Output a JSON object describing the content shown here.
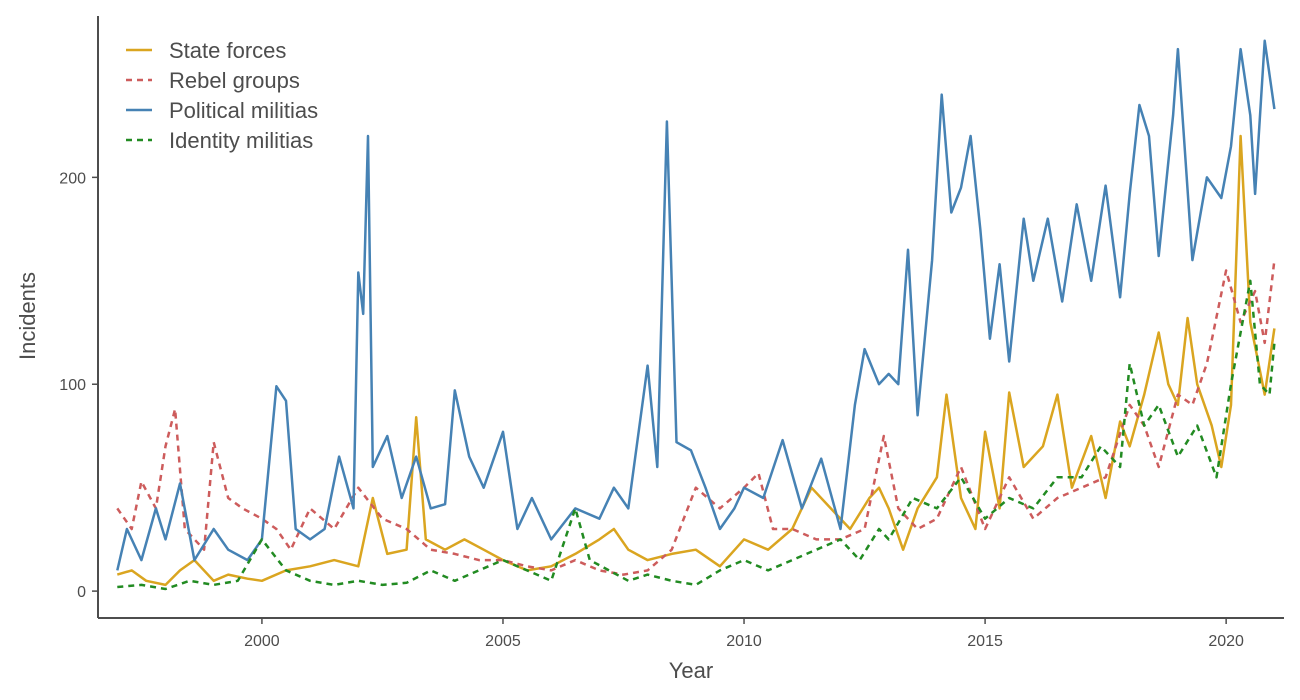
{
  "chart_data": {
    "type": "line",
    "title": "",
    "xlabel": "Year",
    "ylabel": "Incidents",
    "xlim": [
      1996.6,
      2021.2
    ],
    "ylim": [
      -13,
      278
    ],
    "x_ticks": [
      2000,
      2005,
      2010,
      2015,
      2020
    ],
    "y_ticks": [
      0,
      100,
      200
    ],
    "grid": false,
    "legend_position": "top-left",
    "series": [
      {
        "name": "State forces",
        "color": "#DAA520",
        "dash": "solid",
        "points": [
          [
            1997.0,
            8
          ],
          [
            1997.3,
            10
          ],
          [
            1997.6,
            5
          ],
          [
            1998.0,
            3
          ],
          [
            1998.3,
            10
          ],
          [
            1998.6,
            15
          ],
          [
            1999.0,
            5
          ],
          [
            1999.3,
            8
          ],
          [
            1999.7,
            6
          ],
          [
            2000.0,
            5
          ],
          [
            2000.5,
            10
          ],
          [
            2001.0,
            12
          ],
          [
            2001.5,
            15
          ],
          [
            2002.0,
            12
          ],
          [
            2002.3,
            45
          ],
          [
            2002.6,
            18
          ],
          [
            2003.0,
            20
          ],
          [
            2003.2,
            84
          ],
          [
            2003.4,
            25
          ],
          [
            2003.8,
            20
          ],
          [
            2004.2,
            25
          ],
          [
            2004.6,
            20
          ],
          [
            2005.0,
            15
          ],
          [
            2005.5,
            10
          ],
          [
            2006.0,
            12
          ],
          [
            2006.5,
            18
          ],
          [
            2007.0,
            25
          ],
          [
            2007.3,
            30
          ],
          [
            2007.6,
            20
          ],
          [
            2008.0,
            15
          ],
          [
            2008.5,
            18
          ],
          [
            2009.0,
            20
          ],
          [
            2009.5,
            12
          ],
          [
            2010.0,
            25
          ],
          [
            2010.5,
            20
          ],
          [
            2011.0,
            30
          ],
          [
            2011.4,
            50
          ],
          [
            2011.8,
            40
          ],
          [
            2012.2,
            30
          ],
          [
            2012.6,
            45
          ],
          [
            2012.8,
            50
          ],
          [
            2013.0,
            40
          ],
          [
            2013.3,
            20
          ],
          [
            2013.6,
            40
          ],
          [
            2014.0,
            55
          ],
          [
            2014.2,
            95
          ],
          [
            2014.5,
            45
          ],
          [
            2014.8,
            30
          ],
          [
            2015.0,
            77
          ],
          [
            2015.3,
            40
          ],
          [
            2015.5,
            96
          ],
          [
            2015.8,
            60
          ],
          [
            2016.2,
            70
          ],
          [
            2016.5,
            95
          ],
          [
            2016.8,
            50
          ],
          [
            2017.2,
            75
          ],
          [
            2017.5,
            45
          ],
          [
            2017.8,
            82
          ],
          [
            2018.0,
            70
          ],
          [
            2018.3,
            95
          ],
          [
            2018.6,
            125
          ],
          [
            2018.8,
            100
          ],
          [
            2019.0,
            90
          ],
          [
            2019.2,
            132
          ],
          [
            2019.4,
            100
          ],
          [
            2019.7,
            80
          ],
          [
            2019.9,
            60
          ],
          [
            2020.1,
            90
          ],
          [
            2020.3,
            220
          ],
          [
            2020.5,
            130
          ],
          [
            2020.8,
            95
          ],
          [
            2021.0,
            127
          ]
        ]
      },
      {
        "name": "Rebel groups",
        "color": "#CD5C5C",
        "dash": "6,5",
        "points": [
          [
            1997.0,
            40
          ],
          [
            1997.3,
            30
          ],
          [
            1997.5,
            53
          ],
          [
            1997.8,
            40
          ],
          [
            1998.0,
            70
          ],
          [
            1998.2,
            88
          ],
          [
            1998.4,
            30
          ],
          [
            1998.8,
            20
          ],
          [
            1999.0,
            72
          ],
          [
            1999.3,
            45
          ],
          [
            1999.6,
            40
          ],
          [
            2000.0,
            35
          ],
          [
            2000.3,
            30
          ],
          [
            2000.6,
            20
          ],
          [
            2001.0,
            40
          ],
          [
            2001.5,
            30
          ],
          [
            2002.0,
            50
          ],
          [
            2002.5,
            35
          ],
          [
            2003.0,
            30
          ],
          [
            2003.5,
            20
          ],
          [
            2004.0,
            18
          ],
          [
            2004.5,
            15
          ],
          [
            2005.0,
            15
          ],
          [
            2005.5,
            12
          ],
          [
            2006.0,
            10
          ],
          [
            2006.5,
            15
          ],
          [
            2007.0,
            10
          ],
          [
            2007.5,
            8
          ],
          [
            2008.0,
            10
          ],
          [
            2008.5,
            20
          ],
          [
            2009.0,
            50
          ],
          [
            2009.5,
            40
          ],
          [
            2010.0,
            50
          ],
          [
            2010.3,
            57
          ],
          [
            2010.6,
            30
          ],
          [
            2011.0,
            30
          ],
          [
            2011.5,
            25
          ],
          [
            2012.0,
            25
          ],
          [
            2012.5,
            30
          ],
          [
            2012.9,
            75
          ],
          [
            2013.2,
            40
          ],
          [
            2013.6,
            30
          ],
          [
            2014.0,
            35
          ],
          [
            2014.5,
            60
          ],
          [
            2015.0,
            30
          ],
          [
            2015.5,
            55
          ],
          [
            2016.0,
            35
          ],
          [
            2016.5,
            45
          ],
          [
            2017.0,
            50
          ],
          [
            2017.5,
            55
          ],
          [
            2018.0,
            90
          ],
          [
            2018.3,
            80
          ],
          [
            2018.6,
            60
          ],
          [
            2019.0,
            95
          ],
          [
            2019.3,
            90
          ],
          [
            2019.6,
            110
          ],
          [
            2020.0,
            155
          ],
          [
            2020.3,
            130
          ],
          [
            2020.6,
            145
          ],
          [
            2020.8,
            120
          ],
          [
            2021.0,
            160
          ]
        ]
      },
      {
        "name": "Political militias",
        "color": "#4682B4",
        "dash": "solid",
        "points": [
          [
            1997.0,
            10
          ],
          [
            1997.2,
            30
          ],
          [
            1997.5,
            15
          ],
          [
            1997.8,
            40
          ],
          [
            1998.0,
            25
          ],
          [
            1998.3,
            52
          ],
          [
            1998.6,
            15
          ],
          [
            1999.0,
            30
          ],
          [
            1999.3,
            20
          ],
          [
            1999.7,
            15
          ],
          [
            2000.0,
            25
          ],
          [
            2000.3,
            99
          ],
          [
            2000.5,
            92
          ],
          [
            2000.7,
            30
          ],
          [
            2001.0,
            25
          ],
          [
            2001.3,
            30
          ],
          [
            2001.6,
            65
          ],
          [
            2001.9,
            40
          ],
          [
            2002.0,
            154
          ],
          [
            2002.1,
            134
          ],
          [
            2002.2,
            220
          ],
          [
            2002.3,
            60
          ],
          [
            2002.6,
            75
          ],
          [
            2002.9,
            45
          ],
          [
            2003.2,
            65
          ],
          [
            2003.5,
            40
          ],
          [
            2003.8,
            42
          ],
          [
            2004.0,
            97
          ],
          [
            2004.3,
            65
          ],
          [
            2004.6,
            50
          ],
          [
            2005.0,
            77
          ],
          [
            2005.3,
            30
          ],
          [
            2005.6,
            45
          ],
          [
            2006.0,
            25
          ],
          [
            2006.5,
            40
          ],
          [
            2007.0,
            35
          ],
          [
            2007.3,
            50
          ],
          [
            2007.6,
            40
          ],
          [
            2008.0,
            109
          ],
          [
            2008.2,
            60
          ],
          [
            2008.4,
            227
          ],
          [
            2008.6,
            72
          ],
          [
            2008.9,
            68
          ],
          [
            2009.2,
            50
          ],
          [
            2009.5,
            30
          ],
          [
            2009.8,
            40
          ],
          [
            2010.0,
            50
          ],
          [
            2010.4,
            45
          ],
          [
            2010.8,
            73
          ],
          [
            2011.2,
            40
          ],
          [
            2011.6,
            64
          ],
          [
            2012.0,
            30
          ],
          [
            2012.3,
            90
          ],
          [
            2012.5,
            117
          ],
          [
            2012.8,
            100
          ],
          [
            2013.0,
            105
          ],
          [
            2013.2,
            100
          ],
          [
            2013.4,
            165
          ],
          [
            2013.6,
            85
          ],
          [
            2013.9,
            160
          ],
          [
            2014.1,
            240
          ],
          [
            2014.3,
            183
          ],
          [
            2014.5,
            195
          ],
          [
            2014.7,
            220
          ],
          [
            2014.9,
            175
          ],
          [
            2015.1,
            122
          ],
          [
            2015.3,
            158
          ],
          [
            2015.5,
            111
          ],
          [
            2015.8,
            180
          ],
          [
            2016.0,
            150
          ],
          [
            2016.3,
            180
          ],
          [
            2016.6,
            140
          ],
          [
            2016.9,
            187
          ],
          [
            2017.2,
            150
          ],
          [
            2017.5,
            196
          ],
          [
            2017.8,
            142
          ],
          [
            2018.0,
            192
          ],
          [
            2018.2,
            235
          ],
          [
            2018.4,
            220
          ],
          [
            2018.6,
            162
          ],
          [
            2018.9,
            230
          ],
          [
            2019.0,
            262
          ],
          [
            2019.3,
            160
          ],
          [
            2019.6,
            200
          ],
          [
            2019.9,
            190
          ],
          [
            2020.1,
            215
          ],
          [
            2020.3,
            262
          ],
          [
            2020.5,
            230
          ],
          [
            2020.6,
            192
          ],
          [
            2020.8,
            266
          ],
          [
            2021.0,
            233
          ]
        ]
      },
      {
        "name": "Identity militias",
        "color": "#228B22",
        "dash": "6,5",
        "points": [
          [
            1997.0,
            2
          ],
          [
            1997.5,
            3
          ],
          [
            1998.0,
            1
          ],
          [
            1998.5,
            5
          ],
          [
            1999.0,
            3
          ],
          [
            1999.5,
            5
          ],
          [
            2000.0,
            25
          ],
          [
            2000.5,
            10
          ],
          [
            2001.0,
            5
          ],
          [
            2001.5,
            3
          ],
          [
            2002.0,
            5
          ],
          [
            2002.5,
            3
          ],
          [
            2003.0,
            4
          ],
          [
            2003.5,
            10
          ],
          [
            2004.0,
            5
          ],
          [
            2004.5,
            10
          ],
          [
            2005.0,
            15
          ],
          [
            2005.5,
            10
          ],
          [
            2006.0,
            5
          ],
          [
            2006.5,
            40
          ],
          [
            2006.8,
            15
          ],
          [
            2007.2,
            10
          ],
          [
            2007.6,
            5
          ],
          [
            2008.0,
            8
          ],
          [
            2008.5,
            5
          ],
          [
            2009.0,
            3
          ],
          [
            2009.5,
            10
          ],
          [
            2010.0,
            15
          ],
          [
            2010.5,
            10
          ],
          [
            2011.0,
            15
          ],
          [
            2011.5,
            20
          ],
          [
            2012.0,
            25
          ],
          [
            2012.4,
            15
          ],
          [
            2012.8,
            30
          ],
          [
            2013.0,
            25
          ],
          [
            2013.5,
            45
          ],
          [
            2014.0,
            40
          ],
          [
            2014.5,
            55
          ],
          [
            2015.0,
            35
          ],
          [
            2015.5,
            45
          ],
          [
            2016.0,
            40
          ],
          [
            2016.5,
            55
          ],
          [
            2017.0,
            55
          ],
          [
            2017.4,
            70
          ],
          [
            2017.8,
            60
          ],
          [
            2018.0,
            110
          ],
          [
            2018.3,
            80
          ],
          [
            2018.6,
            90
          ],
          [
            2019.0,
            65
          ],
          [
            2019.4,
            80
          ],
          [
            2019.8,
            55
          ],
          [
            2020.1,
            100
          ],
          [
            2020.3,
            125
          ],
          [
            2020.5,
            150
          ],
          [
            2020.7,
            100
          ],
          [
            2020.9,
            95
          ],
          [
            2021.0,
            120
          ]
        ]
      }
    ]
  }
}
